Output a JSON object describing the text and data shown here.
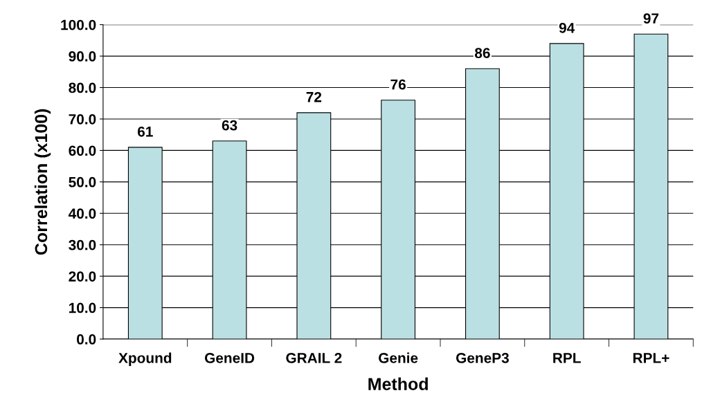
{
  "chart_data": {
    "type": "bar",
    "xlabel": "Method",
    "ylabel": "Correlation (x100)",
    "categories": [
      "Xpound",
      "GeneID",
      "GRAIL 2",
      "Genie",
      "GeneP3",
      "RPL",
      "RPL+"
    ],
    "values": [
      61,
      63,
      72,
      76,
      86,
      94,
      97
    ],
    "color": "#bbe0e3",
    "ylim": [
      0,
      100
    ],
    "yticks": [
      {
        "value": 0,
        "label": "0.0"
      },
      {
        "value": 10,
        "label": "10.0"
      },
      {
        "value": 20,
        "label": "20.0"
      },
      {
        "value": 30,
        "label": "30.0"
      },
      {
        "value": 40,
        "label": "40.0"
      },
      {
        "value": 50,
        "label": "50.0"
      },
      {
        "value": 60,
        "label": "60.0"
      },
      {
        "value": 70,
        "label": "70.0"
      },
      {
        "value": 80,
        "label": "80.0"
      },
      {
        "value": 90,
        "label": "90.0"
      },
      {
        "value": 100,
        "label": "100.0"
      }
    ],
    "grid": "y",
    "data_labels": true
  }
}
